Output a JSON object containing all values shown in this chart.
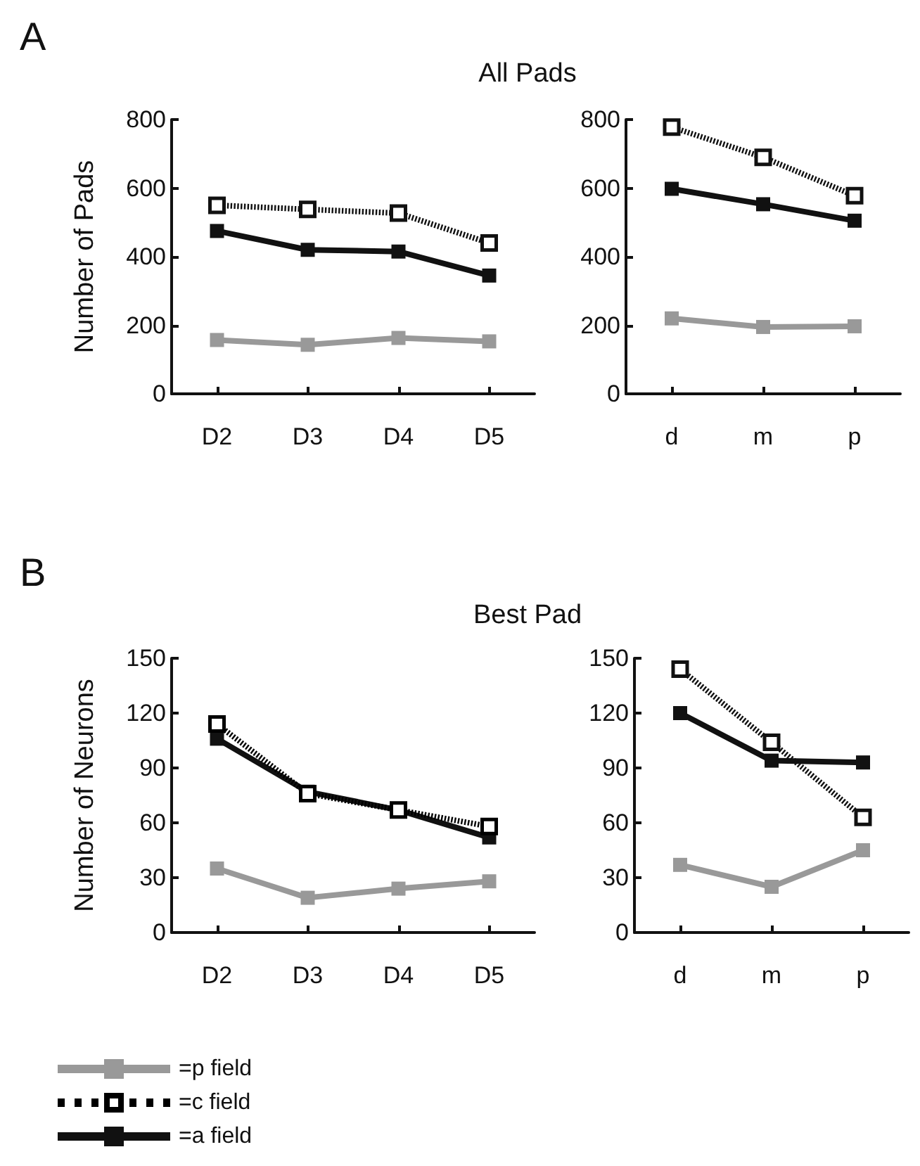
{
  "chart_data": [
    {
      "type": "line",
      "title": "All Pads",
      "annotations": [
        "A"
      ],
      "ylabel": "Number of Pads",
      "categories": [
        "D2",
        "D3",
        "D4",
        "D5"
      ],
      "ylim": [
        0,
        800
      ],
      "yticks": [
        0,
        200,
        400,
        600,
        800
      ],
      "grid": false,
      "legend": false,
      "marker": "square",
      "line_style": "solid",
      "series": [
        {
          "color": "#999999",
          "values": [
            157,
            143,
            163,
            153
          ]
        },
        {
          "color": "#111111",
          "line_style": "dashed",
          "values": [
            550,
            538,
            527,
            440
          ]
        },
        {
          "color": "#111111",
          "values": [
            475,
            420,
            415,
            345
          ]
        }
      ]
    },
    {
      "type": "line",
      "categories": [
        "d",
        "m",
        "p"
      ],
      "ylim": [
        0,
        800
      ],
      "yticks": [
        0,
        200,
        400,
        600,
        800
      ],
      "grid": false,
      "legend": false,
      "marker": "square",
      "line_style": "solid",
      "series": [
        {
          "color": "#999999",
          "values": [
            220,
            195,
            197
          ]
        },
        {
          "color": "#111111",
          "line_style": "dashed",
          "values": [
            778,
            690,
            578
          ]
        },
        {
          "color": "#111111",
          "values": [
            598,
            553,
            505
          ]
        }
      ]
    },
    {
      "type": "line",
      "title": "Best Pad",
      "annotations": [
        "B"
      ],
      "ylabel": "Number of Neurons",
      "categories": [
        "D2",
        "D3",
        "D4",
        "D5"
      ],
      "ylim": [
        0,
        150
      ],
      "yticks": [
        0,
        30,
        60,
        90,
        120,
        150
      ],
      "grid": false,
      "legend": "bottom left",
      "marker": "square",
      "line_style": "solid",
      "series": [
        {
          "name": "=p field",
          "color": "#999999",
          "values": [
            35,
            19,
            24,
            28
          ]
        },
        {
          "name": "=c field",
          "color": "#000000",
          "line_style": "dashed",
          "values": [
            114,
            76,
            67,
            58
          ]
        },
        {
          "name": "=a field",
          "color": "#111111",
          "values": [
            106,
            77,
            67,
            52
          ]
        }
      ]
    },
    {
      "type": "line",
      "categories": [
        "d",
        "m",
        "p"
      ],
      "ylim": [
        0,
        150
      ],
      "yticks": [
        0,
        30,
        60,
        90,
        120,
        150
      ],
      "grid": false,
      "legend": false,
      "marker": "square",
      "line_style": "solid",
      "series": [
        {
          "color": "#999999",
          "values": [
            37,
            25,
            45
          ]
        },
        {
          "color": "#111111",
          "line_style": "dashed",
          "values": [
            144,
            104,
            63
          ]
        },
        {
          "color": "#111111",
          "values": [
            120,
            94,
            93
          ]
        }
      ]
    }
  ]
}
